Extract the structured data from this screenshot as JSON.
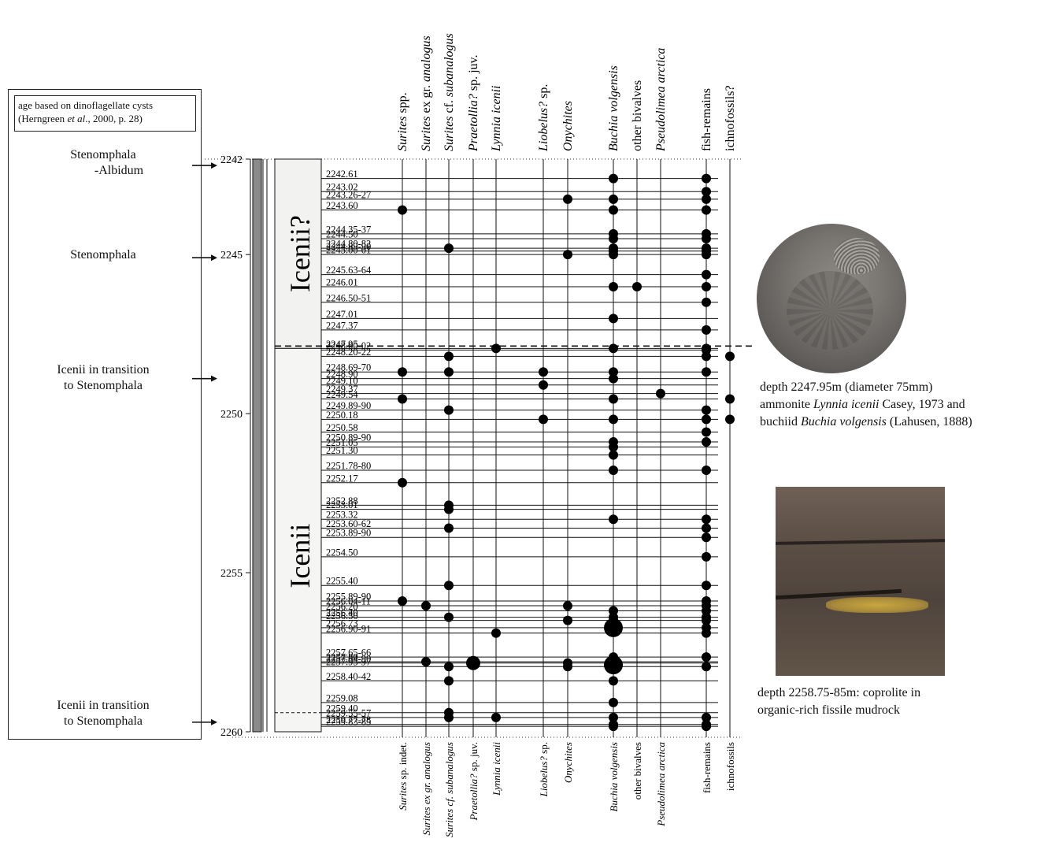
{
  "age_box": {
    "note_line1": "age based on dinoflagellate cysts",
    "note_line2_a": "(Herngreen ",
    "note_line2_b": "et al",
    "note_line2_c": "., 2000, p. 28)",
    "zones": [
      {
        "line1": "Stenomphala",
        "line2": "-Albidum",
        "arrow_depth": 2242.2
      },
      {
        "line1": "Stenomphala",
        "line2": "",
        "arrow_depth": 2245.1
      },
      {
        "line1": "Icenii in transition",
        "line2": "to Stenomphala",
        "arrow_depth": 2248.9
      },
      {
        "line1": "Icenii in transition",
        "line2": "to Stenomphala",
        "arrow_depth": 2259.7
      }
    ]
  },
  "depth_scale": {
    "ticks": [
      2242,
      2245,
      2250,
      2255,
      2260
    ],
    "min": 2242,
    "max": 2260
  },
  "zones_column": {
    "upper_label": "Icenii?",
    "lower_label": "Icenii",
    "boundary_depth": 2247.95
  },
  "taxa_top": [
    {
      "text": "Surites",
      "suffix": " spp.",
      "italic": true
    },
    {
      "text": "Surites",
      "suffix": " ex gr. ",
      "suffix2": "analogus",
      "italic": true
    },
    {
      "text": "Surites",
      "suffix": " cf. ",
      "suffix2": "subanalogus",
      "italic": true
    },
    {
      "text": "Praetollia?",
      "suffix": " sp. juv.",
      "italic": true
    },
    {
      "text": "Lynnia icenii",
      "suffix": "",
      "italic": true
    },
    {
      "text": "Liobelus?",
      "suffix": " sp.",
      "italic": true
    },
    {
      "text": "Onychites",
      "suffix": "",
      "italic": true
    },
    {
      "text": "Buchia volgensis",
      "suffix": "",
      "italic": true
    },
    {
      "text": "other bivalves",
      "suffix": "",
      "italic": false
    },
    {
      "text": "Pseudolimea arctica",
      "suffix": "",
      "italic": true
    },
    {
      "text": "fish-remains",
      "suffix": "",
      "italic": false
    },
    {
      "text": "ichnofossils?",
      "suffix": "",
      "italic": false
    }
  ],
  "taxa_bottom": [
    {
      "text": "Surites",
      "suffix": " sp. indet.",
      "italic": true
    },
    {
      "text": "Surites ex gr. analogus",
      "suffix": "",
      "italic": true
    },
    {
      "text": "Surites cf. subanalogus",
      "suffix": "",
      "italic": true
    },
    {
      "text": "Praetollia?",
      "suffix": " sp. juv.",
      "italic": true
    },
    {
      "text": "Lynnia icenii",
      "suffix": "",
      "italic": true
    },
    {
      "text": "Liobelus?",
      "suffix": " sp.",
      "italic": true
    },
    {
      "text": "Onychites",
      "suffix": "",
      "italic": true
    },
    {
      "text": "Buchia volgensis",
      "suffix": "",
      "italic": true
    },
    {
      "text": "other bivalves",
      "suffix": "",
      "italic": false
    },
    {
      "text": "Pseudolimea arctica",
      "suffix": "",
      "italic": true
    },
    {
      "text": "fish-remains",
      "suffix": "",
      "italic": false
    },
    {
      "text": "ichnofossils",
      "suffix": "",
      "italic": false
    }
  ],
  "samples": [
    {
      "label": "2242.61",
      "depth": 2242.61,
      "taxa": [
        7,
        10
      ]
    },
    {
      "label": "2243.02",
      "depth": 2243.02,
      "taxa": [
        10
      ]
    },
    {
      "label": "2243.26-27",
      "depth": 2243.26,
      "taxa": [
        6,
        7,
        10
      ]
    },
    {
      "label": "2243.60",
      "depth": 2243.6,
      "taxa": [
        0,
        7,
        10
      ]
    },
    {
      "label": "2244.35-37",
      "depth": 2244.35,
      "taxa": [
        7,
        10
      ]
    },
    {
      "label": "2244.50",
      "depth": 2244.5,
      "taxa": [
        7,
        10
      ]
    },
    {
      "label": "2244.80-82",
      "depth": 2244.8,
      "taxa": [
        2,
        7,
        10
      ]
    },
    {
      "label": "2244.89-90",
      "depth": 2244.89,
      "taxa": [
        7,
        10
      ]
    },
    {
      "label": "2245.00-01",
      "depth": 2245.0,
      "taxa": [
        6,
        7,
        10
      ]
    },
    {
      "label": "2245.63-64",
      "depth": 2245.63,
      "taxa": [
        10
      ]
    },
    {
      "label": "2246.01",
      "depth": 2246.01,
      "taxa": [
        7,
        8,
        10
      ]
    },
    {
      "label": "2246.50-51",
      "depth": 2246.5,
      "taxa": [
        10
      ]
    },
    {
      "label": "2247.01",
      "depth": 2247.01,
      "taxa": [
        7
      ]
    },
    {
      "label": "2247.37",
      "depth": 2247.37,
      "taxa": [
        10
      ]
    },
    {
      "label": "2247.95",
      "depth": 2247.95,
      "taxa": [
        4,
        7,
        10
      ]
    },
    {
      "label": "2248.00-02",
      "depth": 2248.0,
      "taxa": [
        10
      ]
    },
    {
      "label": "2248.20-22",
      "depth": 2248.2,
      "taxa": [
        2,
        10,
        11
      ]
    },
    {
      "label": "2248.69-70",
      "depth": 2248.69,
      "taxa": [
        0,
        2,
        5,
        7,
        10
      ]
    },
    {
      "label": "2248.90",
      "depth": 2248.9,
      "taxa": [
        7
      ]
    },
    {
      "label": "2249.10",
      "depth": 2249.1,
      "taxa": [
        5
      ]
    },
    {
      "label": "2249.37",
      "depth": 2249.37,
      "taxa": [
        9
      ]
    },
    {
      "label": "2249.54",
      "depth": 2249.54,
      "taxa": [
        0,
        7,
        11
      ]
    },
    {
      "label": "2249.89-90",
      "depth": 2249.89,
      "taxa": [
        2,
        10
      ]
    },
    {
      "label": "2250.18",
      "depth": 2250.18,
      "taxa": [
        5,
        7,
        10,
        11
      ]
    },
    {
      "label": "2250.58",
      "depth": 2250.58,
      "taxa": [
        10
      ]
    },
    {
      "label": "2250.89-90",
      "depth": 2250.89,
      "taxa": [
        7,
        10
      ]
    },
    {
      "label": "2251.05",
      "depth": 2251.05,
      "taxa": [
        7
      ]
    },
    {
      "label": "2251.30",
      "depth": 2251.3,
      "taxa": [
        7
      ]
    },
    {
      "label": "2251.78-80",
      "depth": 2251.78,
      "taxa": [
        7,
        10
      ]
    },
    {
      "label": "2252.17",
      "depth": 2252.17,
      "taxa": [
        0
      ]
    },
    {
      "label": "2252.88",
      "depth": 2252.88,
      "taxa": [
        2
      ]
    },
    {
      "label": "2253.01",
      "depth": 2253.01,
      "taxa": [
        2
      ]
    },
    {
      "label": "2253.32",
      "depth": 2253.32,
      "taxa": [
        7,
        10
      ]
    },
    {
      "label": "2253.60-62",
      "depth": 2253.6,
      "taxa": [
        2,
        10
      ]
    },
    {
      "label": "2253.89-90",
      "depth": 2253.89,
      "taxa": [
        10
      ]
    },
    {
      "label": "2254.50",
      "depth": 2254.5,
      "taxa": [
        10
      ]
    },
    {
      "label": "2255.40",
      "depth": 2255.4,
      "taxa": [
        2,
        10
      ]
    },
    {
      "label": "2255.89-90",
      "depth": 2255.89,
      "taxa": [
        0,
        10
      ]
    },
    {
      "label": "2256.04-11",
      "depth": 2256.04,
      "taxa": [
        1,
        6,
        10
      ]
    },
    {
      "label": "2256.20",
      "depth": 2256.2,
      "taxa": [
        7,
        10
      ]
    },
    {
      "label": "2256.40",
      "depth": 2256.4,
      "taxa": [
        2,
        7,
        10
      ]
    },
    {
      "label": "2256.50",
      "depth": 2256.5,
      "taxa": [
        6,
        7,
        10
      ]
    },
    {
      "label": "2256.73",
      "depth": 2256.73,
      "taxa": [
        7,
        10
      ]
    },
    {
      "label": "2256.90-91",
      "depth": 2256.9,
      "taxa": [
        4,
        10
      ]
    },
    {
      "label": "2257.65-66",
      "depth": 2257.65,
      "taxa": [
        7,
        10
      ]
    },
    {
      "label": "2257.80",
      "depth": 2257.8,
      "taxa": [
        1,
        3
      ]
    },
    {
      "label": "2257.84-90",
      "depth": 2257.84,
      "taxa": [
        6,
        7
      ]
    },
    {
      "label": "2257.95-97",
      "depth": 2257.95,
      "taxa": [
        2,
        6,
        7,
        10
      ]
    },
    {
      "label": "2258.40-42",
      "depth": 2258.4,
      "taxa": [
        2,
        7
      ]
    },
    {
      "label": "2259.08",
      "depth": 2259.08,
      "taxa": [
        7
      ]
    },
    {
      "label": "2259.40",
      "depth": 2259.4,
      "taxa": [
        2
      ]
    },
    {
      "label": "2259.55-57",
      "depth": 2259.55,
      "taxa": [
        2,
        4,
        7,
        10
      ]
    },
    {
      "label": "2259.77-78",
      "depth": 2259.77,
      "taxa": [
        7,
        10
      ]
    },
    {
      "label": "2259.83-85",
      "depth": 2259.83,
      "taxa": [
        7,
        10
      ]
    }
  ],
  "large_dots": [
    {
      "taxon": 7,
      "depth": 2256.73
    },
    {
      "taxon": 7,
      "depth": 2257.9
    },
    {
      "taxon": 3,
      "depth": 2257.84
    }
  ],
  "photo1": {
    "line1": "depth 2247.95m (diameter 75mm)",
    "line2_a": "ammonite ",
    "line2_b": "Lynnia icenii",
    "line2_c": " Casey, 1973 and",
    "line3_a": "buchiid ",
    "line3_b": "Buchia volgensis",
    "line3_c": " (Lahusen, 1888)"
  },
  "photo2": {
    "line1": "depth 2258.75-85m: coprolite in",
    "line2": "organic-rich fissile mudrock"
  }
}
